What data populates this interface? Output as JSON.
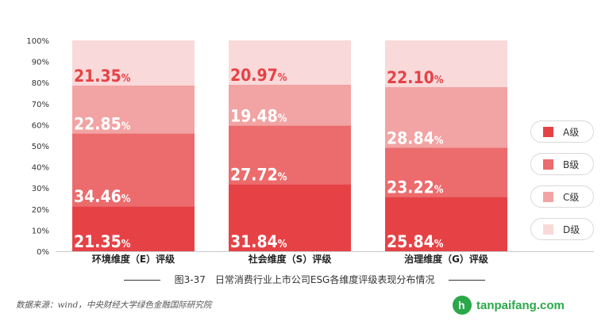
{
  "chart_data": {
    "type": "bar",
    "stacked": true,
    "categories": [
      "环境维度（E）评级",
      "社会维度（S）评级",
      "治理维度（G）评级"
    ],
    "series": [
      {
        "name": "A级",
        "values": [
          21.35,
          31.84,
          25.84
        ],
        "labels": [
          "21.35",
          "31.84",
          "25.84"
        ]
      },
      {
        "name": "B级",
        "values": [
          34.46,
          27.72,
          23.22
        ],
        "labels": [
          "34.46",
          "27.72",
          "23.22"
        ]
      },
      {
        "name": "C级",
        "values": [
          22.85,
          19.48,
          28.84
        ],
        "labels": [
          "22.85",
          "19.48",
          "28.84"
        ]
      },
      {
        "name": "D级",
        "values": [
          21.35,
          20.97,
          22.1
        ],
        "labels": [
          "21.35",
          "20.97",
          "22.10"
        ]
      }
    ],
    "unit": "%",
    "ylim": [
      0,
      100
    ],
    "yticks": [
      "0%",
      "10%",
      "20%",
      "30%",
      "40%",
      "50%",
      "60%",
      "70%",
      "80%",
      "90%",
      "100%"
    ],
    "legend_position": "right",
    "grid": false
  },
  "colors": {
    "A级": "#e64246",
    "B级": "#ec6b6d",
    "C级": "#f2a3a3",
    "D级": "#f9d9d9",
    "label_dark": "#e64246"
  },
  "caption": "图3-37　日常消费行业上市公司ESG各维度评级表现分布情况",
  "source": "数据来源：wind，中央财经大学绿色金融国际研究院",
  "watermark": {
    "text": "tanpaifang.com",
    "logo_glyph": "h"
  },
  "legend_icon": "square-swatch"
}
